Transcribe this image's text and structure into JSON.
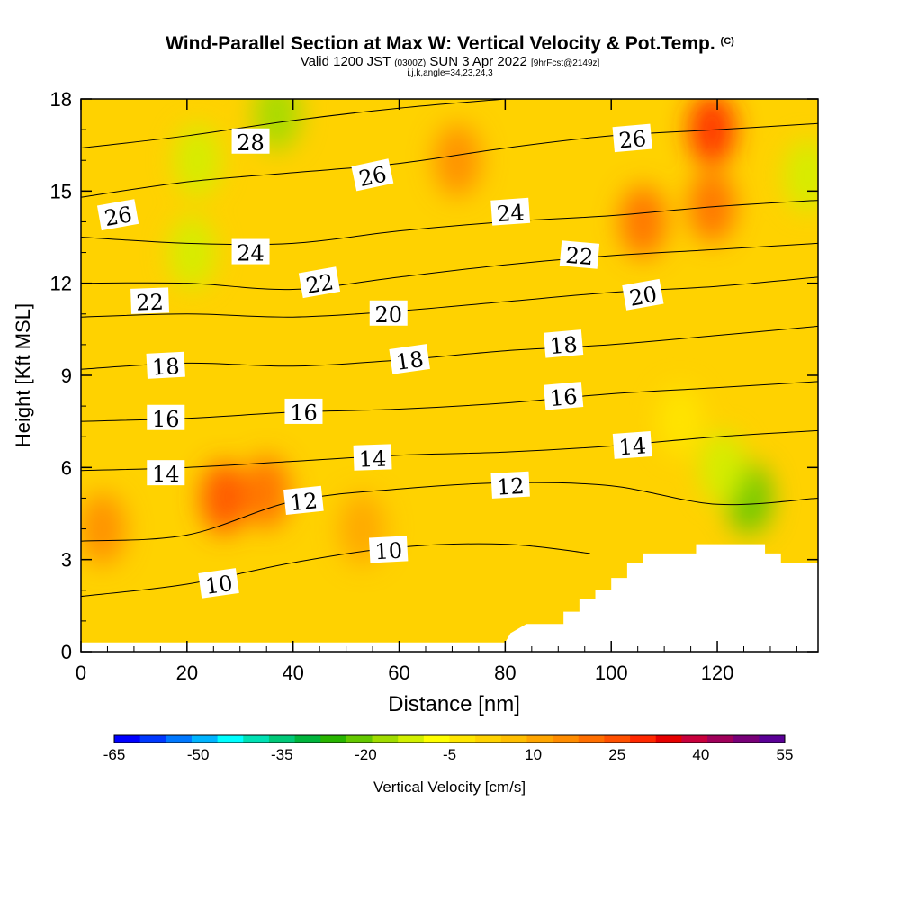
{
  "title": {
    "main": "Wind-Parallel Section at Max W: Vertical Velocity & Pot.Temp.",
    "copyright": "(C)",
    "valid_prefix": "Valid 1200 JST",
    "valid_utc": "(0300Z)",
    "valid_date": "SUN 3 Apr 2022",
    "forecast": "[9hrFcst@2149z]",
    "indices": "i,j,k,angle=34,23,24,3"
  },
  "chart_data": {
    "type": "heatmap",
    "xlabel": "Distance [nm]",
    "ylabel": "Height [Kft MSL]",
    "xlim": [
      0,
      139
    ],
    "ylim": [
      0,
      18
    ],
    "x_ticks": [
      0,
      20,
      40,
      60,
      80,
      100,
      120
    ],
    "y_ticks": [
      0,
      3,
      6,
      9,
      12,
      15,
      18
    ],
    "terrain": [
      [
        0,
        0.3
      ],
      [
        80,
        0.3
      ],
      [
        81,
        0.6
      ],
      [
        84,
        0.9
      ],
      [
        91,
        0.9
      ],
      [
        91,
        1.3
      ],
      [
        94,
        1.3
      ],
      [
        94,
        1.7
      ],
      [
        97,
        1.7
      ],
      [
        97,
        2.0
      ],
      [
        100,
        2.0
      ],
      [
        100,
        2.4
      ],
      [
        103,
        2.4
      ],
      [
        103,
        2.9
      ],
      [
        106,
        2.9
      ],
      [
        106,
        3.2
      ],
      [
        116,
        3.2
      ],
      [
        116,
        3.5
      ],
      [
        129,
        3.5
      ],
      [
        129,
        3.2
      ],
      [
        132,
        3.2
      ],
      [
        132,
        2.9
      ],
      [
        139,
        2.9
      ]
    ],
    "velocity_field": [
      {
        "x": 22,
        "y": 16,
        "w": -10
      },
      {
        "x": 21,
        "y": 13,
        "w": -10
      },
      {
        "x": 37,
        "y": 17.5,
        "w": -15
      },
      {
        "x": 27,
        "y": 5.0,
        "w": 25
      },
      {
        "x": 35,
        "y": 5.2,
        "w": 20
      },
      {
        "x": 4,
        "y": 4.0,
        "w": 15
      },
      {
        "x": 53,
        "y": 4.0,
        "w": 12
      },
      {
        "x": 71,
        "y": 16,
        "w": 15
      },
      {
        "x": 106,
        "y": 14,
        "w": 20
      },
      {
        "x": 119,
        "y": 17.0,
        "w": 30
      },
      {
        "x": 119,
        "y": 14.5,
        "w": 20
      },
      {
        "x": 137,
        "y": 15.5,
        "w": -10
      },
      {
        "x": 126,
        "y": 5.0,
        "w": -20
      },
      {
        "x": 121,
        "y": 6.0,
        "w": -12
      },
      {
        "x": 113,
        "y": 7.5,
        "w": -5
      }
    ],
    "isentropes": [
      {
        "label": "10",
        "points": [
          [
            0,
            1.8
          ],
          [
            20,
            2.2
          ],
          [
            40,
            2.9
          ],
          [
            60,
            3.4
          ],
          [
            80,
            3.5
          ],
          [
            96,
            3.2
          ]
        ]
      },
      {
        "label": "12",
        "points": [
          [
            0,
            3.6
          ],
          [
            20,
            3.8
          ],
          [
            40,
            4.9
          ],
          [
            60,
            5.3
          ],
          [
            80,
            5.5
          ],
          [
            100,
            5.4
          ],
          [
            120,
            4.8
          ],
          [
            139,
            5.0
          ]
        ]
      },
      {
        "label": "14",
        "points": [
          [
            0,
            5.9
          ],
          [
            20,
            6.0
          ],
          [
            40,
            6.2
          ],
          [
            60,
            6.4
          ],
          [
            80,
            6.5
          ],
          [
            100,
            6.7
          ],
          [
            120,
            7.0
          ],
          [
            139,
            7.2
          ]
        ]
      },
      {
        "label": "16",
        "points": [
          [
            0,
            7.5
          ],
          [
            20,
            7.6
          ],
          [
            40,
            7.8
          ],
          [
            60,
            7.9
          ],
          [
            80,
            8.1
          ],
          [
            100,
            8.4
          ],
          [
            120,
            8.6
          ],
          [
            139,
            8.8
          ]
        ]
      },
      {
        "label": "18",
        "points": [
          [
            0,
            9.2
          ],
          [
            20,
            9.4
          ],
          [
            40,
            9.3
          ],
          [
            60,
            9.5
          ],
          [
            80,
            9.8
          ],
          [
            100,
            10.0
          ],
          [
            120,
            10.3
          ],
          [
            139,
            10.6
          ]
        ]
      },
      {
        "label": "20",
        "points": [
          [
            0,
            10.9
          ],
          [
            20,
            11.0
          ],
          [
            40,
            10.9
          ],
          [
            60,
            11.1
          ],
          [
            80,
            11.4
          ],
          [
            100,
            11.7
          ],
          [
            120,
            11.9
          ],
          [
            139,
            12.2
          ]
        ]
      },
      {
        "label": "22",
        "points": [
          [
            0,
            12.0
          ],
          [
            20,
            12.0
          ],
          [
            40,
            11.8
          ],
          [
            60,
            12.2
          ],
          [
            80,
            12.6
          ],
          [
            100,
            12.9
          ],
          [
            120,
            13.1
          ],
          [
            139,
            13.3
          ]
        ]
      },
      {
        "label": "24",
        "points": [
          [
            0,
            13.5
          ],
          [
            20,
            13.3
          ],
          [
            40,
            13.3
          ],
          [
            60,
            13.7
          ],
          [
            80,
            14.0
          ],
          [
            100,
            14.2
          ],
          [
            120,
            14.5
          ],
          [
            139,
            14.7
          ]
        ]
      },
      {
        "label": "26",
        "points": [
          [
            0,
            14.8
          ],
          [
            20,
            15.3
          ],
          [
            40,
            15.6
          ],
          [
            60,
            15.9
          ],
          [
            80,
            16.4
          ],
          [
            100,
            16.8
          ],
          [
            120,
            17.0
          ],
          [
            139,
            17.2
          ]
        ]
      },
      {
        "label": "28",
        "points": [
          [
            0,
            16.4
          ],
          [
            20,
            16.8
          ],
          [
            40,
            17.3
          ],
          [
            60,
            17.7
          ],
          [
            80,
            18.0
          ]
        ]
      }
    ],
    "contour_labels": [
      {
        "text": "10",
        "x": 26,
        "y": 2.2,
        "angle": -8
      },
      {
        "text": "10",
        "x": 58,
        "y": 3.3,
        "angle": -3
      },
      {
        "text": "12",
        "x": 42,
        "y": 4.9,
        "angle": -6
      },
      {
        "text": "12",
        "x": 81,
        "y": 5.4,
        "angle": -3
      },
      {
        "text": "14",
        "x": 16,
        "y": 5.8,
        "angle": 0
      },
      {
        "text": "14",
        "x": 55,
        "y": 6.3,
        "angle": -2
      },
      {
        "text": "14",
        "x": 104,
        "y": 6.7,
        "angle": -4
      },
      {
        "text": "16",
        "x": 16,
        "y": 7.6,
        "angle": 0
      },
      {
        "text": "16",
        "x": 42,
        "y": 7.8,
        "angle": 0
      },
      {
        "text": "16",
        "x": 91,
        "y": 8.3,
        "angle": -5
      },
      {
        "text": "18",
        "x": 16,
        "y": 9.3,
        "angle": -3
      },
      {
        "text": "18",
        "x": 62,
        "y": 9.5,
        "angle": -8
      },
      {
        "text": "18",
        "x": 91,
        "y": 10.0,
        "angle": -5
      },
      {
        "text": "20",
        "x": 58,
        "y": 11.0,
        "angle": 0
      },
      {
        "text": "20",
        "x": 106,
        "y": 11.6,
        "angle": -10
      },
      {
        "text": "22",
        "x": 13,
        "y": 11.4,
        "angle": -2
      },
      {
        "text": "22",
        "x": 45,
        "y": 12.0,
        "angle": -10
      },
      {
        "text": "22",
        "x": 94,
        "y": 12.9,
        "angle": 5
      },
      {
        "text": "24",
        "x": 32,
        "y": 13.0,
        "angle": 0
      },
      {
        "text": "24",
        "x": 81,
        "y": 14.3,
        "angle": -4
      },
      {
        "text": "26",
        "x": 7,
        "y": 14.2,
        "angle": -10
      },
      {
        "text": "26",
        "x": 55,
        "y": 15.5,
        "angle": -12
      },
      {
        "text": "26",
        "x": 104,
        "y": 16.7,
        "angle": -5
      },
      {
        "text": "28",
        "x": 32,
        "y": 16.6,
        "angle": 0
      }
    ],
    "colorbar": {
      "label": "Vertical Velocity [cm/s]",
      "tick_labels": [
        "-65",
        "-50",
        "-35",
        "-20",
        "-5",
        "10",
        "25",
        "40",
        "55"
      ],
      "colors": [
        "#0000ff",
        "#0038ff",
        "#0078ff",
        "#00b4ff",
        "#00ffff",
        "#00e1b4",
        "#00c878",
        "#00b43c",
        "#28b400",
        "#64c800",
        "#a0dc00",
        "#d2f000",
        "#ffff00",
        "#ffe600",
        "#ffd200",
        "#ffbe00",
        "#ffa500",
        "#ff8c00",
        "#ff6e00",
        "#ff5000",
        "#ff2800",
        "#e60000",
        "#c8003c",
        "#a0005a",
        "#780078",
        "#5a0096"
      ]
    }
  }
}
